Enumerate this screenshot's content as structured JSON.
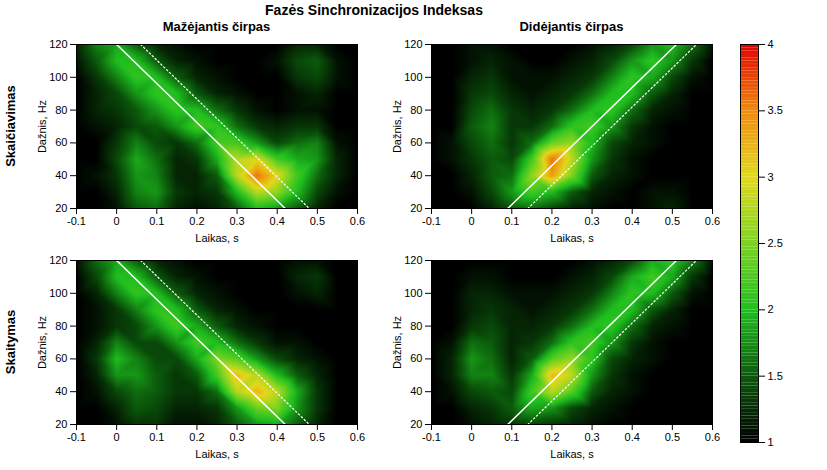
{
  "title": "Fazės Sinchronizacijos Indeksas",
  "colorbar": {
    "zlim": [
      1,
      4
    ],
    "zticks": [
      1,
      1.5,
      2,
      2.5,
      3,
      3.5,
      4
    ]
  },
  "chart_data": [
    {
      "type": "heatmap",
      "title": "Mažėjantis čirpas",
      "row_label": "Skaičiavimas",
      "xlabel": "Laikas, s",
      "ylabel": "Dažnis, Hz",
      "xlim": [
        -0.1,
        0.6
      ],
      "ylim": [
        20,
        120
      ],
      "xticks": [
        -0.1,
        0,
        0.1,
        0.2,
        0.3,
        0.4,
        0.5,
        0.6
      ],
      "yticks": [
        20,
        40,
        60,
        80,
        100,
        120
      ],
      "x": [
        -0.1,
        -0.05,
        0,
        0.05,
        0.1,
        0.15,
        0.2,
        0.25,
        0.3,
        0.35,
        0.4,
        0.45,
        0.5,
        0.55,
        0.6
      ],
      "y": [
        20,
        30,
        40,
        50,
        60,
        70,
        80,
        90,
        100,
        110,
        120
      ],
      "z": [
        [
          1.0,
          1.0,
          1.1,
          1.5,
          1.6,
          1.2,
          1.1,
          1.2,
          1.5,
          2.0,
          1.8,
          1.5,
          1.2,
          1.0,
          1.0
        ],
        [
          1.0,
          1.0,
          1.2,
          1.7,
          1.8,
          1.3,
          1.2,
          1.3,
          2.0,
          2.8,
          2.6,
          2.0,
          1.4,
          1.1,
          1.0
        ],
        [
          1.0,
          1.1,
          1.3,
          1.8,
          1.7,
          1.2,
          1.2,
          1.5,
          2.8,
          3.6,
          3.0,
          2.2,
          1.6,
          1.2,
          1.0
        ],
        [
          1.0,
          1.0,
          1.4,
          1.9,
          1.6,
          1.2,
          1.3,
          1.9,
          2.8,
          3.0,
          2.2,
          1.9,
          1.8,
          1.2,
          1.0
        ],
        [
          1.0,
          1.0,
          1.3,
          1.7,
          1.4,
          1.3,
          1.6,
          2.2,
          2.2,
          1.8,
          1.4,
          1.6,
          1.7,
          1.1,
          1.0
        ],
        [
          1.0,
          1.1,
          1.2,
          1.4,
          1.5,
          1.8,
          2.2,
          2.1,
          1.6,
          1.3,
          1.2,
          1.3,
          1.3,
          1.0,
          1.0
        ],
        [
          1.0,
          1.2,
          1.3,
          1.5,
          1.8,
          2.1,
          2.0,
          1.6,
          1.3,
          1.1,
          1.0,
          1.1,
          1.1,
          1.0,
          1.0
        ],
        [
          1.0,
          1.2,
          1.4,
          1.8,
          2.1,
          2.0,
          1.5,
          1.2,
          1.1,
          1.0,
          1.0,
          1.1,
          1.2,
          1.0,
          1.0
        ],
        [
          1.0,
          1.3,
          1.7,
          2.1,
          2.0,
          1.5,
          1.2,
          1.1,
          1.0,
          1.0,
          1.0,
          1.3,
          1.4,
          1.1,
          1.0
        ],
        [
          1.1,
          1.5,
          2.0,
          2.0,
          1.5,
          1.2,
          1.1,
          1.0,
          1.0,
          1.0,
          1.1,
          1.4,
          1.5,
          1.1,
          1.0
        ],
        [
          1.2,
          1.7,
          1.9,
          1.5,
          1.2,
          1.1,
          1.0,
          1.0,
          1.0,
          1.0,
          1.0,
          1.2,
          1.2,
          1.0,
          1.0
        ]
      ],
      "lines": [
        {
          "x": [
            0,
            0.42
          ],
          "y": [
            120,
            20
          ],
          "line_style": "solid",
          "color": "#ffffff"
        },
        {
          "x": [
            0.06,
            0.48
          ],
          "y": [
            120,
            20
          ],
          "line_style": "dotted",
          "color": "#ffffff"
        }
      ]
    },
    {
      "type": "heatmap",
      "title": "Didėjantis čirpas",
      "xlabel": "Laikas, s",
      "ylabel": "Dažnis, Hz",
      "xlim": [
        -0.1,
        0.6
      ],
      "ylim": [
        20,
        120
      ],
      "xticks": [
        -0.1,
        0,
        0.1,
        0.2,
        0.3,
        0.4,
        0.5,
        0.6
      ],
      "yticks": [
        20,
        40,
        60,
        80,
        100,
        120
      ],
      "x": [
        -0.1,
        -0.05,
        0,
        0.05,
        0.1,
        0.15,
        0.2,
        0.25,
        0.3,
        0.35,
        0.4,
        0.45,
        0.5,
        0.55,
        0.6
      ],
      "y": [
        20,
        30,
        40,
        50,
        60,
        70,
        80,
        90,
        100,
        110,
        120
      ],
      "z": [
        [
          1.0,
          1.0,
          1.0,
          1.2,
          1.5,
          1.6,
          1.4,
          1.2,
          1.1,
          1.0,
          1.0,
          1.1,
          1.2,
          1.0,
          1.0
        ],
        [
          1.0,
          1.0,
          1.1,
          1.4,
          1.8,
          2.2,
          2.0,
          1.5,
          1.2,
          1.1,
          1.0,
          1.1,
          1.1,
          1.0,
          1.0
        ],
        [
          1.0,
          1.0,
          1.2,
          1.5,
          1.6,
          2.6,
          3.4,
          2.5,
          1.5,
          1.2,
          1.1,
          1.0,
          1.0,
          1.0,
          1.0
        ],
        [
          1.0,
          1.1,
          1.3,
          1.5,
          1.4,
          2.2,
          3.6,
          2.8,
          1.8,
          1.3,
          1.1,
          1.0,
          1.0,
          1.0,
          1.0
        ],
        [
          1.0,
          1.1,
          1.4,
          1.6,
          1.3,
          1.6,
          2.4,
          2.6,
          2.0,
          1.4,
          1.2,
          1.1,
          1.0,
          1.0,
          1.0
        ],
        [
          1.0,
          1.0,
          1.5,
          1.7,
          1.3,
          1.3,
          1.6,
          2.1,
          2.2,
          1.8,
          1.3,
          1.1,
          1.0,
          1.0,
          1.0
        ],
        [
          1.0,
          1.0,
          1.4,
          1.6,
          1.3,
          1.2,
          1.3,
          1.6,
          2.0,
          2.1,
          1.6,
          1.2,
          1.1,
          1.0,
          1.0
        ],
        [
          1.0,
          1.0,
          1.3,
          1.4,
          1.2,
          1.1,
          1.2,
          1.3,
          1.6,
          2.0,
          2.0,
          1.5,
          1.2,
          1.0,
          1.0
        ],
        [
          1.0,
          1.0,
          1.2,
          1.3,
          1.1,
          1.1,
          1.1,
          1.2,
          1.3,
          1.7,
          2.1,
          1.9,
          1.4,
          1.1,
          1.0
        ],
        [
          1.0,
          1.0,
          1.1,
          1.2,
          1.1,
          1.0,
          1.0,
          1.1,
          1.2,
          1.4,
          1.8,
          2.1,
          1.8,
          1.3,
          1.0
        ],
        [
          1.0,
          1.0,
          1.1,
          1.1,
          1.0,
          1.0,
          1.0,
          1.0,
          1.1,
          1.2,
          1.4,
          1.8,
          2.0,
          1.6,
          1.1
        ]
      ],
      "lines": [
        {
          "x": [
            0.09,
            0.51
          ],
          "y": [
            20,
            120
          ],
          "line_style": "solid",
          "color": "#ffffff"
        },
        {
          "x": [
            0.14,
            0.56
          ],
          "y": [
            20,
            120
          ],
          "line_style": "dotted",
          "color": "#ffffff"
        }
      ]
    },
    {
      "type": "heatmap",
      "row_label": "Skaitymas",
      "xlabel": "Laikas, s",
      "ylabel": "Dažnis, Hz",
      "xlim": [
        -0.1,
        0.6
      ],
      "ylim": [
        20,
        120
      ],
      "xticks": [
        -0.1,
        0,
        0.1,
        0.2,
        0.3,
        0.4,
        0.5,
        0.6
      ],
      "yticks": [
        20,
        40,
        60,
        80,
        100,
        120
      ],
      "x": [
        -0.1,
        -0.05,
        0,
        0.05,
        0.1,
        0.15,
        0.2,
        0.25,
        0.3,
        0.35,
        0.4,
        0.45,
        0.5,
        0.55,
        0.6
      ],
      "y": [
        20,
        30,
        40,
        50,
        60,
        70,
        80,
        90,
        100,
        110,
        120
      ],
      "z": [
        [
          1.0,
          1.0,
          1.1,
          1.3,
          1.3,
          1.1,
          1.1,
          1.2,
          1.5,
          1.8,
          1.9,
          1.5,
          1.2,
          1.0,
          1.0
        ],
        [
          1.0,
          1.0,
          1.2,
          1.5,
          1.4,
          1.2,
          1.2,
          1.3,
          1.8,
          2.4,
          2.5,
          1.8,
          1.3,
          1.0,
          1.0
        ],
        [
          1.0,
          1.1,
          1.4,
          1.6,
          1.5,
          1.3,
          1.3,
          1.6,
          2.8,
          3.2,
          2.8,
          1.9,
          1.3,
          1.0,
          1.0
        ],
        [
          1.0,
          1.2,
          1.8,
          1.8,
          1.5,
          1.3,
          1.5,
          2.2,
          3.2,
          2.8,
          2.0,
          1.5,
          1.2,
          1.0,
          1.0
        ],
        [
          1.0,
          1.3,
          2.0,
          1.7,
          1.4,
          1.4,
          1.9,
          2.5,
          2.3,
          1.8,
          1.4,
          1.2,
          1.1,
          1.0,
          1.0
        ],
        [
          1.0,
          1.2,
          1.7,
          1.4,
          1.4,
          1.8,
          2.2,
          2.0,
          1.6,
          1.3,
          1.1,
          1.1,
          1.0,
          1.0,
          1.0
        ],
        [
          1.0,
          1.1,
          1.3,
          1.4,
          1.8,
          2.2,
          1.9,
          1.5,
          1.2,
          1.1,
          1.0,
          1.0,
          1.0,
          1.0,
          1.0
        ],
        [
          1.0,
          1.1,
          1.3,
          1.7,
          2.1,
          2.0,
          1.5,
          1.2,
          1.1,
          1.0,
          1.0,
          1.0,
          1.0,
          1.0,
          1.0
        ],
        [
          1.0,
          1.2,
          1.7,
          2.1,
          2.0,
          1.5,
          1.2,
          1.1,
          1.0,
          1.0,
          1.0,
          1.1,
          1.2,
          1.0,
          1.0
        ],
        [
          1.0,
          1.4,
          2.0,
          2.0,
          1.5,
          1.2,
          1.1,
          1.0,
          1.0,
          1.0,
          1.0,
          1.2,
          1.3,
          1.0,
          1.0
        ],
        [
          1.1,
          1.6,
          1.9,
          1.5,
          1.2,
          1.1,
          1.0,
          1.0,
          1.0,
          1.0,
          1.0,
          1.1,
          1.1,
          1.0,
          1.0
        ]
      ],
      "lines": [
        {
          "x": [
            0,
            0.42
          ],
          "y": [
            120,
            20
          ],
          "line_style": "solid",
          "color": "#ffffff"
        },
        {
          "x": [
            0.06,
            0.48
          ],
          "y": [
            120,
            20
          ],
          "line_style": "dotted",
          "color": "#ffffff"
        }
      ]
    },
    {
      "type": "heatmap",
      "xlabel": "Laikas, s",
      "ylabel": "Dažnis, Hz",
      "xlim": [
        -0.1,
        0.6
      ],
      "ylim": [
        20,
        120
      ],
      "xticks": [
        -0.1,
        0,
        0.1,
        0.2,
        0.3,
        0.4,
        0.5,
        0.6
      ],
      "yticks": [
        20,
        40,
        60,
        80,
        100,
        120
      ],
      "x": [
        -0.1,
        -0.05,
        0,
        0.05,
        0.1,
        0.15,
        0.2,
        0.25,
        0.3,
        0.35,
        0.4,
        0.45,
        0.5,
        0.55,
        0.6
      ],
      "y": [
        20,
        30,
        40,
        50,
        60,
        70,
        80,
        90,
        100,
        110,
        120
      ],
      "z": [
        [
          1.0,
          1.0,
          1.1,
          1.2,
          1.3,
          1.4,
          1.3,
          1.2,
          1.1,
          1.0,
          1.0,
          1.0,
          1.0,
          1.0,
          1.0
        ],
        [
          1.0,
          1.0,
          1.2,
          1.3,
          1.5,
          1.9,
          1.8,
          1.4,
          1.2,
          1.1,
          1.0,
          1.0,
          1.0,
          1.0,
          1.0
        ],
        [
          1.0,
          1.1,
          1.4,
          1.5,
          1.4,
          2.2,
          2.8,
          2.3,
          1.5,
          1.2,
          1.1,
          1.0,
          1.0,
          1.0,
          1.0
        ],
        [
          1.0,
          1.2,
          1.7,
          1.7,
          1.3,
          1.9,
          3.2,
          2.8,
          1.8,
          1.3,
          1.1,
          1.0,
          1.0,
          1.0,
          1.0
        ],
        [
          1.0,
          1.2,
          1.8,
          1.6,
          1.2,
          1.5,
          2.3,
          2.6,
          2.1,
          1.4,
          1.2,
          1.1,
          1.0,
          1.0,
          1.0
        ],
        [
          1.0,
          1.1,
          1.6,
          1.5,
          1.2,
          1.3,
          1.6,
          2.1,
          2.2,
          1.8,
          1.3,
          1.1,
          1.0,
          1.0,
          1.0
        ],
        [
          1.0,
          1.0,
          1.3,
          1.4,
          1.2,
          1.2,
          1.3,
          1.6,
          2.0,
          2.1,
          1.6,
          1.2,
          1.1,
          1.0,
          1.0
        ],
        [
          1.0,
          1.0,
          1.2,
          1.3,
          1.2,
          1.1,
          1.2,
          1.3,
          1.6,
          2.0,
          2.0,
          1.5,
          1.2,
          1.0,
          1.0
        ],
        [
          1.0,
          1.0,
          1.2,
          1.2,
          1.1,
          1.1,
          1.1,
          1.2,
          1.3,
          1.7,
          2.1,
          2.0,
          1.5,
          1.1,
          1.0
        ],
        [
          1.0,
          1.0,
          1.1,
          1.1,
          1.0,
          1.0,
          1.0,
          1.1,
          1.2,
          1.4,
          1.9,
          2.2,
          1.9,
          1.3,
          1.0
        ],
        [
          1.0,
          1.0,
          1.0,
          1.0,
          1.0,
          1.0,
          1.0,
          1.0,
          1.1,
          1.2,
          1.4,
          1.9,
          2.1,
          1.7,
          1.1
        ]
      ],
      "lines": [
        {
          "x": [
            0.09,
            0.51
          ],
          "y": [
            20,
            120
          ],
          "line_style": "solid",
          "color": "#ffffff"
        },
        {
          "x": [
            0.14,
            0.56
          ],
          "y": [
            20,
            120
          ],
          "line_style": "dotted",
          "color": "#ffffff"
        }
      ]
    }
  ]
}
